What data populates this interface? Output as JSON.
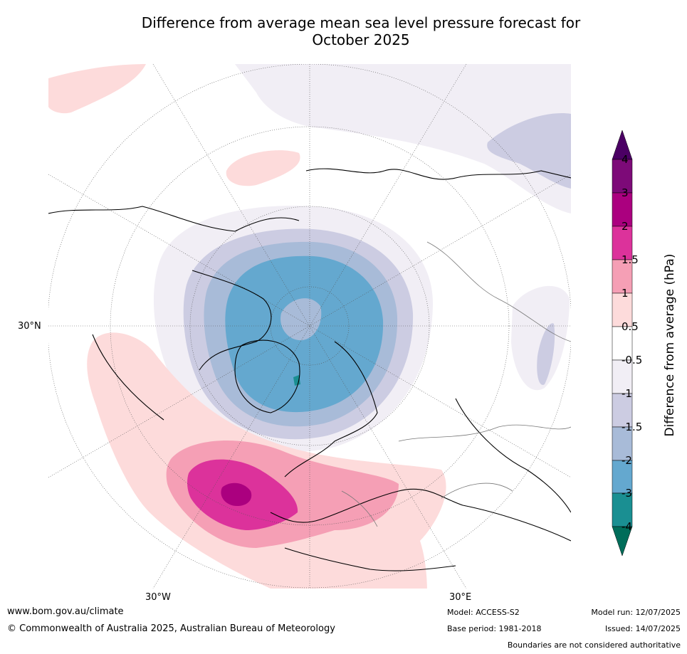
{
  "title_line1": "Difference from average mean sea level pressure forecast for",
  "title_line2": "October 2025",
  "graticule": {
    "lat_label": "30°N",
    "lon_left": "30°W",
    "lon_right": "30°E"
  },
  "colorbar": {
    "title": "Difference from average (hPa)",
    "ticks": [
      "4",
      "3",
      "2",
      "1.5",
      "1",
      "0.5",
      "-0.5",
      "-1",
      "-1.5",
      "-2",
      "-3",
      "-4"
    ],
    "colors": [
      "#4b0064",
      "#7d0a78",
      "#ab007f",
      "#dc329b",
      "#f59fb5",
      "#fddbdb",
      "#ffffff",
      "#f1eef5",
      "#cccce2",
      "#a8bbd8",
      "#64a8cf",
      "#1a8f92",
      "#006d5a"
    ]
  },
  "footer": {
    "url": "www.bom.gov.au/climate",
    "copyright": "© Commonwealth of Australia 2025, Australian Bureau of Meteorology",
    "model": "Model: ACCESS-S2",
    "base_period": "Base period: 1981-2018",
    "model_run": "Model run: 12/07/2025",
    "issued": "Issued: 14/07/2025",
    "disclaimer": "Boundaries are not considered authoritative"
  }
}
